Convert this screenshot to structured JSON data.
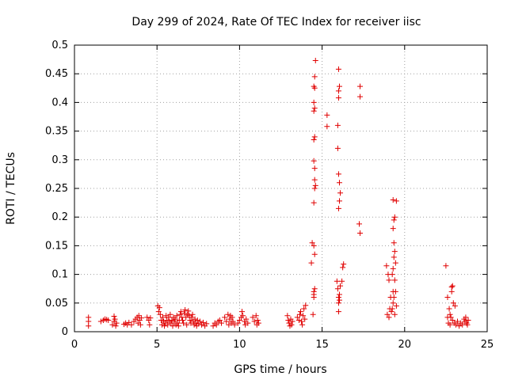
{
  "chart_data": {
    "type": "scatter",
    "title": "Day 299 of 2024, Rate Of TEC Index for receiver iisc",
    "xlabel": "GPS time / hours",
    "ylabel": "ROTI / TECUs",
    "xlim": [
      0,
      25
    ],
    "ylim": [
      0,
      0.5
    ],
    "xticks": [
      0,
      5,
      10,
      15,
      20,
      25
    ],
    "xtick_labels": [
      "0",
      "5",
      "10",
      "15",
      "20",
      "25"
    ],
    "yticks": [
      0,
      0.05,
      0.1,
      0.15,
      0.2,
      0.25,
      0.3,
      0.35,
      0.4,
      0.45,
      0.5
    ],
    "ytick_labels": [
      "0",
      "0.05",
      "0.1",
      "0.15",
      "0.2",
      "0.25",
      "0.3",
      "0.35",
      "0.4",
      "0.45",
      "0.5"
    ],
    "grid": true,
    "marker": "+",
    "color": "#e00000",
    "series": [
      {
        "points": [
          [
            0.85,
            0.025
          ],
          [
            0.85,
            0.018
          ],
          [
            0.85,
            0.01
          ],
          [
            1.6,
            0.018
          ],
          [
            1.75,
            0.02
          ],
          [
            1.85,
            0.022
          ],
          [
            1.95,
            0.021
          ],
          [
            2.05,
            0.02
          ],
          [
            2.3,
            0.012
          ],
          [
            2.4,
            0.018
          ],
          [
            2.4,
            0.027
          ],
          [
            2.45,
            0.022
          ],
          [
            2.5,
            0.01
          ],
          [
            2.55,
            0.015
          ],
          [
            3.0,
            0.013
          ],
          [
            3.1,
            0.015
          ],
          [
            3.2,
            0.012
          ],
          [
            3.3,
            0.016
          ],
          [
            3.45,
            0.012
          ],
          [
            3.6,
            0.018
          ],
          [
            3.7,
            0.022
          ],
          [
            3.8,
            0.025
          ],
          [
            3.85,
            0.015
          ],
          [
            3.9,
            0.028
          ],
          [
            3.95,
            0.02
          ],
          [
            4.0,
            0.012
          ],
          [
            4.05,
            0.024
          ],
          [
            4.4,
            0.025
          ],
          [
            4.5,
            0.02
          ],
          [
            4.55,
            0.012
          ],
          [
            4.6,
            0.024
          ],
          [
            5.05,
            0.045
          ],
          [
            5.1,
            0.035
          ],
          [
            5.15,
            0.042
          ],
          [
            5.2,
            0.03
          ],
          [
            5.25,
            0.02
          ],
          [
            5.3,
            0.012
          ],
          [
            5.35,
            0.025
          ],
          [
            5.4,
            0.018
          ],
          [
            5.45,
            0.01
          ],
          [
            5.5,
            0.015
          ],
          [
            5.55,
            0.028
          ],
          [
            5.6,
            0.02
          ],
          [
            5.65,
            0.012
          ],
          [
            5.7,
            0.025
          ],
          [
            5.75,
            0.018
          ],
          [
            5.8,
            0.03
          ],
          [
            5.85,
            0.015
          ],
          [
            5.9,
            0.02
          ],
          [
            5.95,
            0.01
          ],
          [
            6.0,
            0.025
          ],
          [
            6.05,
            0.018
          ],
          [
            6.1,
            0.022
          ],
          [
            6.15,
            0.012
          ],
          [
            6.2,
            0.028
          ],
          [
            6.25,
            0.015
          ],
          [
            6.3,
            0.01
          ],
          [
            6.35,
            0.02
          ],
          [
            6.4,
            0.03
          ],
          [
            6.45,
            0.035
          ],
          [
            6.5,
            0.025
          ],
          [
            6.55,
            0.02
          ],
          [
            6.6,
            0.015
          ],
          [
            6.65,
            0.032
          ],
          [
            6.7,
            0.038
          ],
          [
            6.75,
            0.025
          ],
          [
            6.8,
            0.012
          ],
          [
            6.85,
            0.03
          ],
          [
            6.9,
            0.036
          ],
          [
            6.95,
            0.028
          ],
          [
            7.0,
            0.02
          ],
          [
            7.05,
            0.015
          ],
          [
            7.1,
            0.025
          ],
          [
            7.15,
            0.03
          ],
          [
            7.2,
            0.018
          ],
          [
            7.25,
            0.012
          ],
          [
            7.3,
            0.022
          ],
          [
            7.35,
            0.015
          ],
          [
            7.4,
            0.01
          ],
          [
            7.45,
            0.02
          ],
          [
            7.5,
            0.014
          ],
          [
            7.6,
            0.018
          ],
          [
            7.7,
            0.012
          ],
          [
            7.8,
            0.016
          ],
          [
            7.9,
            0.01
          ],
          [
            8.0,
            0.014
          ],
          [
            8.4,
            0.01
          ],
          [
            8.5,
            0.015
          ],
          [
            8.6,
            0.012
          ],
          [
            8.7,
            0.018
          ],
          [
            8.8,
            0.02
          ],
          [
            8.9,
            0.015
          ],
          [
            9.1,
            0.025
          ],
          [
            9.2,
            0.018
          ],
          [
            9.3,
            0.03
          ],
          [
            9.35,
            0.012
          ],
          [
            9.4,
            0.022
          ],
          [
            9.45,
            0.028
          ],
          [
            9.5,
            0.015
          ],
          [
            9.55,
            0.025
          ],
          [
            9.6,
            0.018
          ],
          [
            9.7,
            0.012
          ],
          [
            9.9,
            0.015
          ],
          [
            10.0,
            0.02
          ],
          [
            10.1,
            0.025
          ],
          [
            10.15,
            0.035
          ],
          [
            10.2,
            0.028
          ],
          [
            10.3,
            0.018
          ],
          [
            10.35,
            0.012
          ],
          [
            10.4,
            0.022
          ],
          [
            10.5,
            0.015
          ],
          [
            10.8,
            0.025
          ],
          [
            10.9,
            0.018
          ],
          [
            11.0,
            0.028
          ],
          [
            11.05,
            0.012
          ],
          [
            11.1,
            0.02
          ],
          [
            11.15,
            0.015
          ],
          [
            12.9,
            0.028
          ],
          [
            12.95,
            0.02
          ],
          [
            13.0,
            0.015
          ],
          [
            13.05,
            0.01
          ],
          [
            13.1,
            0.022
          ],
          [
            13.15,
            0.012
          ],
          [
            13.2,
            0.018
          ],
          [
            13.5,
            0.025
          ],
          [
            13.6,
            0.02
          ],
          [
            13.65,
            0.03
          ],
          [
            13.7,
            0.035
          ],
          [
            13.75,
            0.018
          ],
          [
            13.8,
            0.012
          ],
          [
            13.85,
            0.028
          ],
          [
            13.9,
            0.04
          ],
          [
            13.95,
            0.022
          ],
          [
            14.0,
            0.046
          ],
          [
            14.35,
            0.12
          ],
          [
            14.4,
            0.155
          ],
          [
            14.45,
            0.03
          ],
          [
            14.5,
            0.065
          ],
          [
            14.55,
            0.075
          ],
          [
            14.5,
            0.06
          ],
          [
            14.5,
            0.07
          ],
          [
            14.5,
            0.15
          ],
          [
            14.55,
            0.135
          ],
          [
            14.5,
            0.225
          ],
          [
            14.55,
            0.25
          ],
          [
            14.6,
            0.255
          ],
          [
            14.55,
            0.265
          ],
          [
            14.55,
            0.285
          ],
          [
            14.5,
            0.298
          ],
          [
            14.5,
            0.335
          ],
          [
            14.55,
            0.34
          ],
          [
            14.5,
            0.385
          ],
          [
            14.55,
            0.39
          ],
          [
            14.5,
            0.4
          ],
          [
            14.55,
            0.425
          ],
          [
            14.5,
            0.428
          ],
          [
            14.55,
            0.445
          ],
          [
            14.6,
            0.473
          ],
          [
            15.3,
            0.378
          ],
          [
            15.3,
            0.358
          ],
          [
            15.9,
            0.088
          ],
          [
            15.95,
            0.075
          ],
          [
            16.0,
            0.06
          ],
          [
            16.0,
            0.05
          ],
          [
            16.05,
            0.055
          ],
          [
            16.0,
            0.035
          ],
          [
            16.05,
            0.065
          ],
          [
            16.1,
            0.08
          ],
          [
            15.95,
            0.32
          ],
          [
            15.95,
            0.36
          ],
          [
            16.0,
            0.408
          ],
          [
            16.0,
            0.42
          ],
          [
            16.05,
            0.428
          ],
          [
            16.0,
            0.458
          ],
          [
            16.0,
            0.275
          ],
          [
            16.05,
            0.26
          ],
          [
            16.1,
            0.242
          ],
          [
            16.05,
            0.228
          ],
          [
            16.0,
            0.215
          ],
          [
            16.2,
            0.088
          ],
          [
            16.25,
            0.112
          ],
          [
            16.3,
            0.118
          ],
          [
            17.3,
            0.428
          ],
          [
            17.3,
            0.41
          ],
          [
            17.25,
            0.188
          ],
          [
            17.3,
            0.172
          ],
          [
            18.9,
            0.115
          ],
          [
            19.0,
            0.1
          ],
          [
            19.05,
            0.09
          ],
          [
            18.95,
            0.03
          ],
          [
            19.05,
            0.025
          ],
          [
            19.1,
            0.04
          ],
          [
            19.15,
            0.06
          ],
          [
            19.2,
            0.035
          ],
          [
            19.25,
            0.04
          ],
          [
            19.3,
            0.05
          ],
          [
            19.35,
            0.06
          ],
          [
            19.3,
            0.07
          ],
          [
            19.25,
            0.1
          ],
          [
            19.3,
            0.11
          ],
          [
            19.35,
            0.13
          ],
          [
            19.4,
            0.14
          ],
          [
            19.35,
            0.155
          ],
          [
            19.3,
            0.18
          ],
          [
            19.35,
            0.195
          ],
          [
            19.4,
            0.2
          ],
          [
            19.3,
            0.23
          ],
          [
            19.5,
            0.228
          ],
          [
            19.45,
            0.12
          ],
          [
            19.4,
            0.09
          ],
          [
            19.45,
            0.07
          ],
          [
            19.5,
            0.045
          ],
          [
            19.4,
            0.03
          ],
          [
            22.5,
            0.115
          ],
          [
            22.6,
            0.06
          ],
          [
            22.7,
            0.04
          ],
          [
            22.75,
            0.03
          ],
          [
            22.8,
            0.025
          ],
          [
            22.85,
            0.078
          ],
          [
            22.9,
            0.08
          ],
          [
            22.85,
            0.07
          ],
          [
            22.95,
            0.05
          ],
          [
            23.05,
            0.045
          ],
          [
            22.6,
            0.025
          ],
          [
            22.65,
            0.015
          ],
          [
            22.75,
            0.012
          ],
          [
            22.9,
            0.02
          ],
          [
            23.0,
            0.015
          ],
          [
            23.1,
            0.012
          ],
          [
            23.2,
            0.018
          ],
          [
            23.3,
            0.01
          ],
          [
            23.4,
            0.015
          ],
          [
            23.5,
            0.012
          ],
          [
            23.6,
            0.022
          ],
          [
            23.65,
            0.018
          ],
          [
            23.7,
            0.025
          ],
          [
            23.75,
            0.015
          ],
          [
            23.8,
            0.012
          ],
          [
            23.85,
            0.02
          ]
        ]
      }
    ]
  }
}
